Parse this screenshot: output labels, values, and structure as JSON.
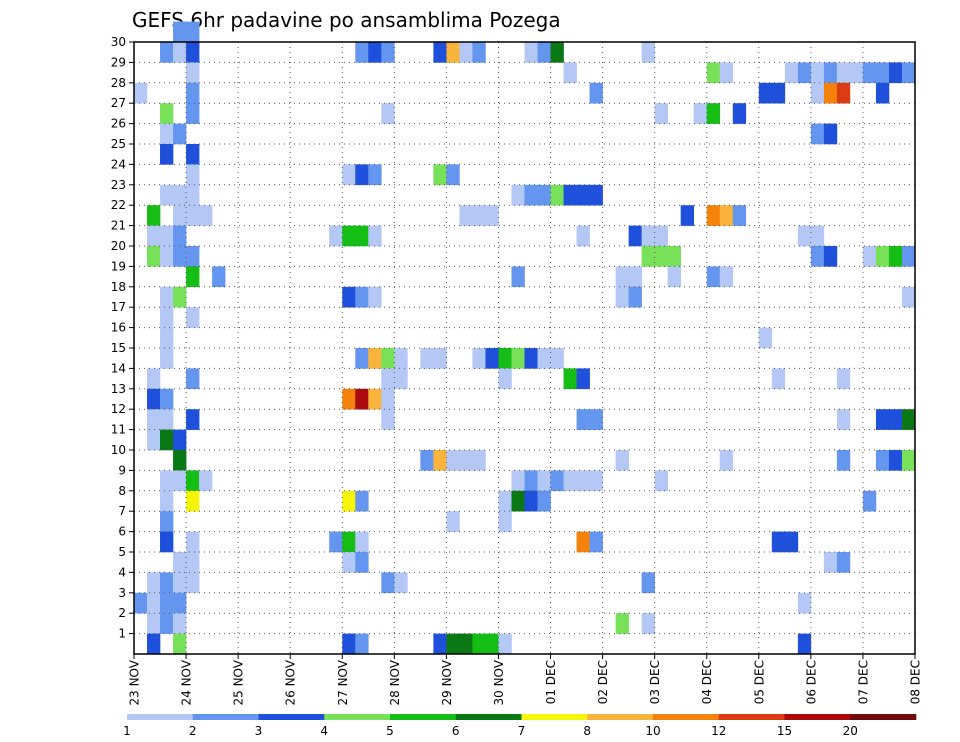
{
  "chart_data": {
    "type": "heatmap",
    "title": "GEFS 6hr padavine po ansamblima Pozega",
    "xlabel": "",
    "ylabel": "",
    "y_ticks": [
      "1",
      "2",
      "3",
      "4",
      "5",
      "6",
      "7",
      "8",
      "9",
      "10",
      "11",
      "12",
      "13",
      "14",
      "15",
      "16",
      "17",
      "18",
      "19",
      "20",
      "21",
      "22",
      "23",
      "24",
      "25",
      "26",
      "27",
      "28",
      "29",
      "30"
    ],
    "x_ticks": [
      "23 NOV",
      "24 NOV",
      "25 NOV",
      "26 NOV",
      "27 NOV",
      "28 NOV",
      "29 NOV",
      "30 NOV",
      "01 DEC",
      "02 DEC",
      "03 DEC",
      "04 DEC",
      "05 DEC",
      "06 DEC",
      "07 DEC",
      "08 DEC"
    ],
    "x_range_steps": [
      0,
      60
    ],
    "y_range": [
      0,
      30
    ],
    "grid": "dotted",
    "colorbar": {
      "labels": [
        "1",
        "2",
        "3",
        "4",
        "5",
        "6",
        "7",
        "8",
        "10",
        "12",
        "15",
        "20"
      ],
      "colors": [
        "#b4c8f5",
        "#6496f0",
        "#1e50dc",
        "#78e15a",
        "#14be14",
        "#0a7814",
        "#f5f50a",
        "#fab43c",
        "#f5820a",
        "#dc3c14",
        "#aa0a0a",
        "#6e0a0a"
      ]
    },
    "cells": [
      {
        "m": 30,
        "t": [
          [
            3,
            1
          ],
          [
            4,
            1
          ]
        ]
      },
      {
        "m": 29,
        "t": [
          [
            2,
            1
          ],
          [
            3,
            0
          ],
          [
            4,
            2
          ],
          [
            17,
            1
          ],
          [
            18,
            2
          ],
          [
            19,
            1
          ],
          [
            23,
            2
          ],
          [
            24,
            7
          ],
          [
            25,
            0
          ],
          [
            26,
            1
          ],
          [
            30,
            0
          ],
          [
            31,
            1
          ],
          [
            32,
            5
          ],
          [
            39,
            0
          ]
        ]
      },
      {
        "m": 28,
        "t": [
          [
            4,
            0
          ],
          [
            33,
            0
          ],
          [
            44,
            3
          ],
          [
            45,
            0
          ],
          [
            50,
            0
          ],
          [
            51,
            1
          ],
          [
            52,
            0
          ],
          [
            53,
            1
          ],
          [
            54,
            0
          ],
          [
            55,
            0
          ],
          [
            56,
            1
          ],
          [
            57,
            1
          ],
          [
            58,
            2
          ],
          [
            59,
            1
          ]
        ]
      },
      {
        "m": 27,
        "t": [
          [
            0,
            0
          ],
          [
            4,
            1
          ],
          [
            35,
            1
          ],
          [
            48,
            2
          ],
          [
            49,
            2
          ],
          [
            52,
            0
          ],
          [
            53,
            8
          ],
          [
            54,
            9
          ],
          [
            57,
            2
          ]
        ]
      },
      {
        "m": 26,
        "t": [
          [
            2,
            3
          ],
          [
            4,
            1
          ],
          [
            19,
            0
          ],
          [
            40,
            0
          ],
          [
            43,
            0
          ],
          [
            44,
            4
          ],
          [
            46,
            2
          ]
        ]
      },
      {
        "m": 25,
        "t": [
          [
            2,
            0
          ],
          [
            3,
            1
          ],
          [
            52,
            1
          ],
          [
            53,
            2
          ]
        ]
      },
      {
        "m": 24,
        "t": [
          [
            2,
            2
          ],
          [
            4,
            2
          ]
        ]
      },
      {
        "m": 23,
        "t": [
          [
            4,
            0
          ],
          [
            16,
            0
          ],
          [
            17,
            2
          ],
          [
            18,
            1
          ],
          [
            23,
            3
          ],
          [
            24,
            1
          ]
        ]
      },
      {
        "m": 22,
        "t": [
          [
            2,
            0
          ],
          [
            3,
            0
          ],
          [
            4,
            0
          ],
          [
            29,
            0
          ],
          [
            30,
            1
          ],
          [
            31,
            1
          ],
          [
            32,
            3
          ],
          [
            33,
            2
          ],
          [
            34,
            2
          ],
          [
            35,
            2
          ]
        ]
      },
      {
        "m": 21,
        "t": [
          [
            1,
            4
          ],
          [
            3,
            0
          ],
          [
            4,
            0
          ],
          [
            5,
            0
          ],
          [
            25,
            0
          ],
          [
            26,
            0
          ],
          [
            27,
            0
          ],
          [
            42,
            2
          ],
          [
            44,
            8
          ],
          [
            45,
            7
          ],
          [
            46,
            1
          ]
        ]
      },
      {
        "m": 20,
        "t": [
          [
            1,
            0
          ],
          [
            2,
            0
          ],
          [
            3,
            1
          ],
          [
            15,
            0
          ],
          [
            16,
            4
          ],
          [
            17,
            4
          ],
          [
            18,
            0
          ],
          [
            34,
            0
          ],
          [
            38,
            2
          ],
          [
            39,
            0
          ],
          [
            40,
            0
          ],
          [
            51,
            0
          ],
          [
            52,
            0
          ]
        ]
      },
      {
        "m": 19,
        "t": [
          [
            1,
            3
          ],
          [
            2,
            0
          ],
          [
            3,
            1
          ],
          [
            4,
            1
          ],
          [
            39,
            3
          ],
          [
            40,
            3
          ],
          [
            41,
            3
          ],
          [
            52,
            1
          ],
          [
            53,
            2
          ],
          [
            56,
            0
          ],
          [
            57,
            3
          ],
          [
            58,
            4
          ],
          [
            59,
            1
          ]
        ]
      },
      {
        "m": 18,
        "t": [
          [
            4,
            4
          ],
          [
            6,
            1
          ],
          [
            29,
            1
          ],
          [
            37,
            0
          ],
          [
            38,
            0
          ],
          [
            41,
            0
          ],
          [
            44,
            1
          ],
          [
            45,
            0
          ]
        ]
      },
      {
        "m": 17,
        "t": [
          [
            2,
            0
          ],
          [
            3,
            3
          ],
          [
            16,
            2
          ],
          [
            17,
            1
          ],
          [
            18,
            0
          ],
          [
            37,
            0
          ],
          [
            38,
            1
          ],
          [
            59,
            0
          ]
        ]
      },
      {
        "m": 16,
        "t": [
          [
            2,
            0
          ],
          [
            4,
            0
          ]
        ]
      },
      {
        "m": 15,
        "t": [
          [
            2,
            0
          ],
          [
            48,
            0
          ]
        ]
      },
      {
        "m": 14,
        "t": [
          [
            2,
            0
          ],
          [
            17,
            1
          ],
          [
            18,
            7
          ],
          [
            19,
            3
          ],
          [
            20,
            0
          ],
          [
            22,
            0
          ],
          [
            23,
            0
          ],
          [
            26,
            0
          ],
          [
            27,
            2
          ],
          [
            28,
            4
          ],
          [
            29,
            3
          ],
          [
            30,
            2
          ],
          [
            31,
            0
          ],
          [
            32,
            0
          ]
        ]
      },
      {
        "m": 13,
        "t": [
          [
            1,
            0
          ],
          [
            4,
            1
          ],
          [
            19,
            0
          ],
          [
            20,
            0
          ],
          [
            28,
            0
          ],
          [
            33,
            4
          ],
          [
            34,
            2
          ],
          [
            49,
            0
          ],
          [
            54,
            0
          ]
        ]
      },
      {
        "m": 12,
        "t": [
          [
            1,
            2
          ],
          [
            2,
            1
          ],
          [
            16,
            8
          ],
          [
            17,
            10
          ],
          [
            18,
            7
          ],
          [
            19,
            0
          ]
        ]
      },
      {
        "m": 11,
        "t": [
          [
            1,
            0
          ],
          [
            2,
            0
          ],
          [
            4,
            2
          ],
          [
            19,
            0
          ],
          [
            34,
            1
          ],
          [
            35,
            1
          ],
          [
            54,
            0
          ],
          [
            57,
            2
          ],
          [
            58,
            2
          ],
          [
            59,
            5
          ]
        ]
      },
      {
        "m": 10,
        "t": [
          [
            1,
            0
          ],
          [
            2,
            5
          ],
          [
            3,
            2
          ]
        ]
      },
      {
        "m": 9,
        "t": [
          [
            3,
            5
          ],
          [
            22,
            1
          ],
          [
            23,
            7
          ],
          [
            24,
            0
          ],
          [
            25,
            0
          ],
          [
            26,
            0
          ],
          [
            37,
            0
          ],
          [
            45,
            0
          ],
          [
            54,
            1
          ],
          [
            57,
            1
          ],
          [
            58,
            2
          ],
          [
            59,
            3
          ]
        ]
      },
      {
        "m": 8,
        "t": [
          [
            2,
            0
          ],
          [
            3,
            0
          ],
          [
            4,
            4
          ],
          [
            5,
            0
          ],
          [
            29,
            0
          ],
          [
            30,
            1
          ],
          [
            31,
            0
          ],
          [
            32,
            1
          ],
          [
            33,
            0
          ],
          [
            34,
            0
          ],
          [
            35,
            0
          ],
          [
            40,
            0
          ]
        ]
      },
      {
        "m": 7,
        "t": [
          [
            2,
            0
          ],
          [
            4,
            6
          ],
          [
            16,
            6
          ],
          [
            17,
            1
          ],
          [
            28,
            0
          ],
          [
            29,
            5
          ],
          [
            30,
            2
          ],
          [
            31,
            1
          ],
          [
            56,
            1
          ]
        ]
      },
      {
        "m": 6,
        "t": [
          [
            2,
            1
          ],
          [
            24,
            0
          ],
          [
            28,
            0
          ]
        ]
      },
      {
        "m": 5,
        "t": [
          [
            2,
            2
          ],
          [
            4,
            0
          ],
          [
            15,
            1
          ],
          [
            16,
            4
          ],
          [
            17,
            0
          ],
          [
            34,
            8
          ],
          [
            35,
            1
          ],
          [
            49,
            2
          ],
          [
            50,
            2
          ]
        ]
      },
      {
        "m": 4,
        "t": [
          [
            3,
            0
          ],
          [
            4,
            0
          ],
          [
            16,
            0
          ],
          [
            17,
            1
          ],
          [
            53,
            0
          ],
          [
            54,
            1
          ]
        ]
      },
      {
        "m": 3,
        "t": [
          [
            1,
            0
          ],
          [
            2,
            1
          ],
          [
            3,
            0
          ],
          [
            4,
            0
          ],
          [
            19,
            1
          ],
          [
            20,
            0
          ],
          [
            39,
            1
          ]
        ]
      },
      {
        "m": 2,
        "t": [
          [
            0,
            1
          ],
          [
            1,
            0
          ],
          [
            2,
            1
          ],
          [
            3,
            1
          ],
          [
            51,
            0
          ]
        ]
      },
      {
        "m": 1,
        "t": [
          [
            1,
            0
          ],
          [
            2,
            1
          ],
          [
            3,
            0
          ],
          [
            37,
            3
          ],
          [
            39,
            0
          ]
        ]
      },
      {
        "m": 0,
        "t": [
          [
            1,
            2
          ],
          [
            3,
            3
          ],
          [
            16,
            2
          ],
          [
            17,
            1
          ],
          [
            23,
            2
          ],
          [
            24,
            5
          ],
          [
            25,
            5
          ],
          [
            26,
            4
          ],
          [
            27,
            4
          ],
          [
            28,
            0
          ],
          [
            51,
            2
          ]
        ]
      }
    ]
  }
}
